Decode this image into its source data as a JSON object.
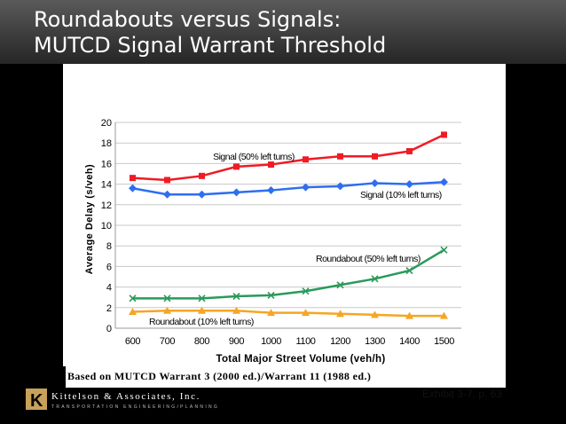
{
  "slide": {
    "title_line1": "Roundabouts versus Signals:",
    "title_line2": "MUTCD Signal Warrant Threshold",
    "footnote": "Based on MUTCD Warrant 3 (2000 ed.)/Warrant 11 (1988 ed.)",
    "exhibit": "Exhibit 3-7, p. 63",
    "company": "Kittelson & Associates, Inc.",
    "tagline": "TRANSPORTATION ENGINEERING/PLANNING",
    "logo_letter": "K"
  },
  "chart_data": {
    "type": "line",
    "xlabel": "Total Major Street Volume (veh/h)",
    "ylabel": "Average Delay (s/veh)",
    "x": [
      600,
      700,
      800,
      900,
      1000,
      1100,
      1200,
      1300,
      1400,
      1500
    ],
    "xticks": [
      "600",
      "700",
      "800",
      "900",
      "1000",
      "1100",
      "1200",
      "1300",
      "1400",
      "1500"
    ],
    "ylim": [
      0,
      20
    ],
    "yticks": [
      "0",
      "2",
      "4",
      "6",
      "8",
      "10",
      "12",
      "14",
      "16",
      "18",
      "20"
    ],
    "grid": true,
    "series": [
      {
        "name": "Signal (50% left turns)",
        "color": "#ee1c25",
        "marker": "square",
        "values": [
          14.6,
          14.4,
          14.8,
          15.7,
          15.9,
          16.4,
          16.7,
          16.7,
          17.2,
          18.8
        ]
      },
      {
        "name": "Signal (10% left turns)",
        "color": "#2e6ef0",
        "marker": "diamond",
        "values": [
          13.6,
          13.0,
          13.0,
          13.2,
          13.4,
          13.7,
          13.8,
          14.1,
          14.0,
          14.2
        ]
      },
      {
        "name": "Roundabout (50% left turns)",
        "color": "#2a9a5a",
        "marker": "x",
        "values": [
          2.9,
          2.9,
          2.9,
          3.1,
          3.2,
          3.6,
          4.2,
          4.8,
          5.6,
          7.6
        ]
      },
      {
        "name": "Roundabout (10% left turns)",
        "color": "#f5a623",
        "marker": "triangle",
        "values": [
          1.6,
          1.7,
          1.7,
          1.7,
          1.5,
          1.5,
          1.4,
          1.3,
          1.2,
          1.2
        ]
      }
    ]
  }
}
